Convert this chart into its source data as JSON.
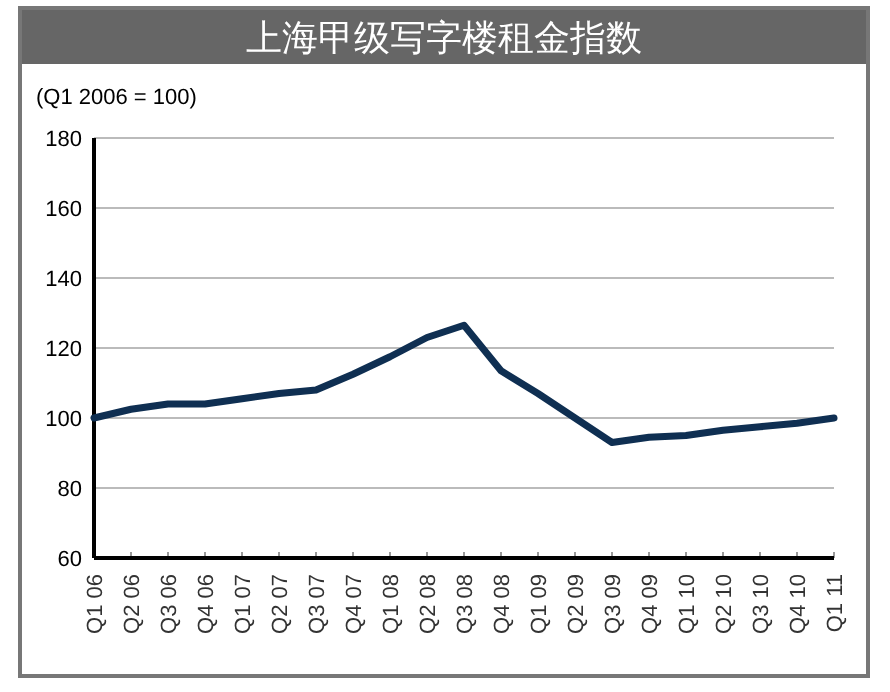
{
  "chart_data": {
    "type": "line",
    "title": "上海甲级写字楼租金指数",
    "ylabel": "(Q1 2006 = 100)",
    "categories": [
      "Q1 06",
      "Q2 06",
      "Q3 06",
      "Q4 06",
      "Q1 07",
      "Q2 07",
      "Q3 07",
      "Q4 07",
      "Q1 08",
      "Q2 08",
      "Q3 08",
      "Q4 08",
      "Q1 09",
      "Q2 09",
      "Q3 09",
      "Q4 09",
      "Q1 10",
      "Q2 10",
      "Q3 10",
      "Q4 10",
      "Q1 11"
    ],
    "series": [
      {
        "color": "#0f2f52",
        "values": [
          100,
          102.5,
          104,
          104,
          105.5,
          107,
          108,
          112.5,
          117.5,
          123,
          126.5,
          113.5,
          107,
          100,
          93,
          94.5,
          95,
          96.5,
          97.5,
          98.5,
          100
        ]
      }
    ],
    "ylim": [
      60,
      180
    ],
    "yticks": [
      60,
      80,
      100,
      120,
      140,
      160,
      180
    ],
    "grid": "y",
    "marker": "none",
    "line_style": "solid"
  }
}
